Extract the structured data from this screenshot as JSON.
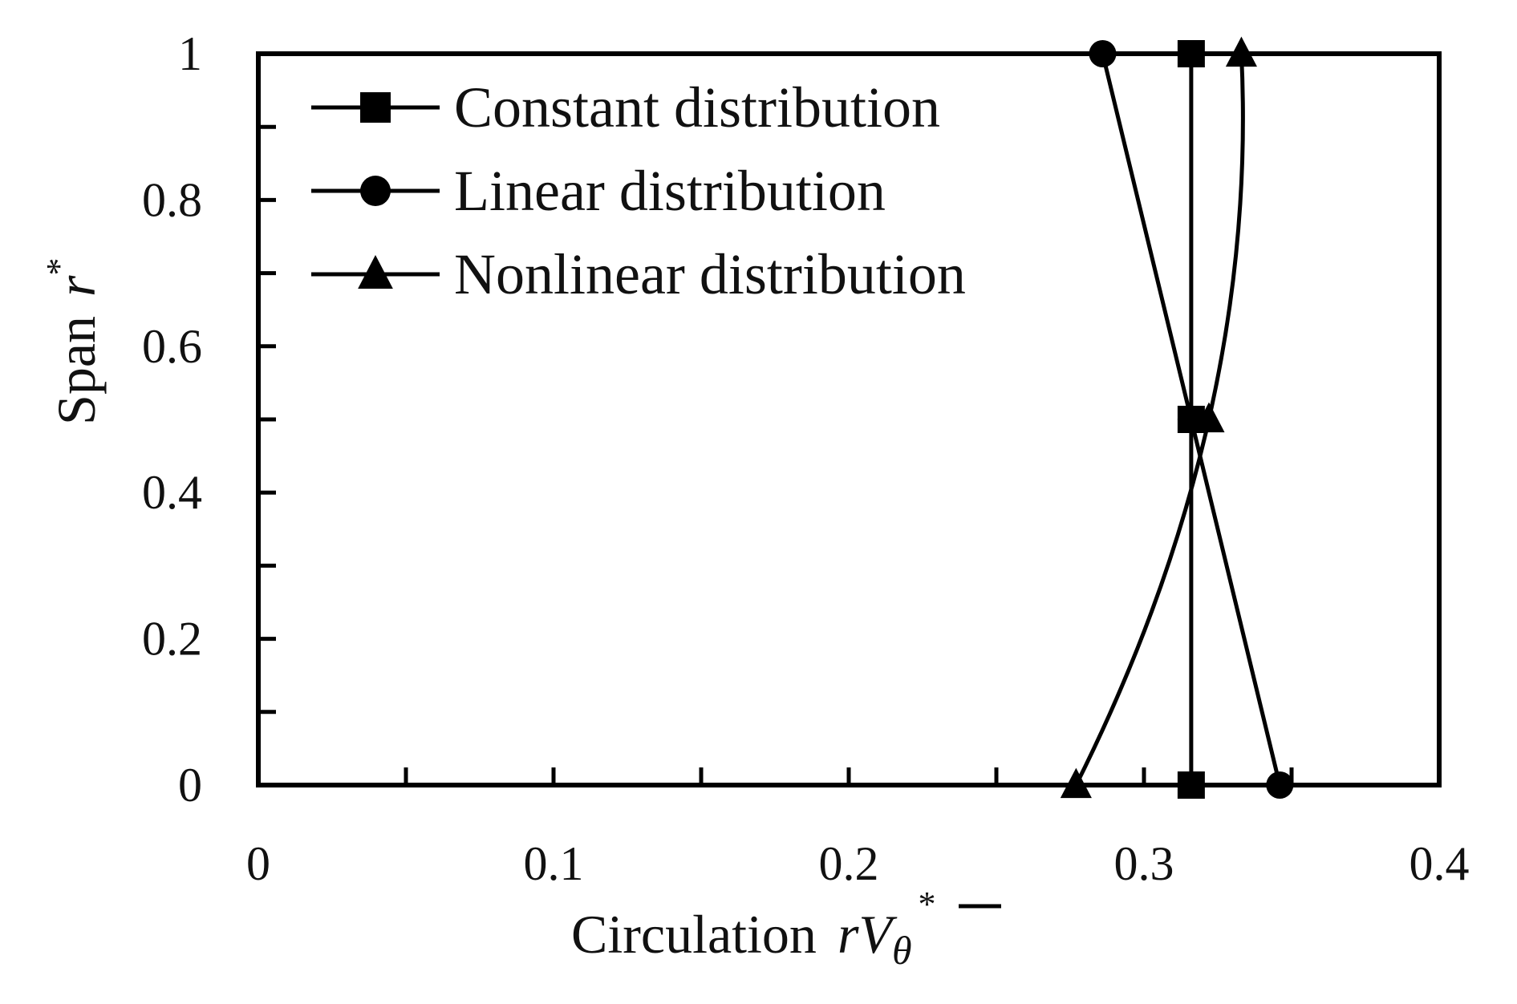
{
  "chart_data": {
    "type": "line",
    "xlabel": {
      "prefix": "Circulation",
      "var_r": "r",
      "var_V": "V",
      "var_sub": "θ",
      "sup": "*"
    },
    "ylabel": {
      "prefix": "Span",
      "var": "r",
      "sup": "*"
    },
    "xlim": [
      0,
      0.4
    ],
    "ylim": [
      0,
      1
    ],
    "x_ticks": [
      0,
      0.1,
      0.2,
      0.3,
      0.4
    ],
    "x_tick_labels": [
      "0",
      "0.1",
      "0.2",
      "0.3",
      "0.4"
    ],
    "x_minor_ticks": [
      0.05,
      0.15,
      0.25,
      0.35
    ],
    "y_ticks": [
      0,
      0.2,
      0.4,
      0.6,
      0.8,
      1
    ],
    "y_tick_labels": [
      "0",
      "0.2",
      "0.4",
      "0.6",
      "0.8",
      "1"
    ],
    "y_minor_ticks": [
      0.1,
      0.3,
      0.5,
      0.7,
      0.9
    ],
    "grid": false,
    "legend_position": "top-left",
    "series": [
      {
        "name": "Constant distribution",
        "marker": "square",
        "color": "#000000",
        "points": [
          {
            "x": 0.316,
            "y": 0
          },
          {
            "x": 0.316,
            "y": 0.5
          },
          {
            "x": 0.316,
            "y": 1
          }
        ]
      },
      {
        "name": "Linear distribution",
        "marker": "circle",
        "color": "#000000",
        "points": [
          {
            "x": 0.346,
            "y": 0
          },
          {
            "x": 0.316,
            "y": 0.5
          },
          {
            "x": 0.286,
            "y": 1
          }
        ]
      },
      {
        "name": "Nonlinear distribution",
        "marker": "triangle",
        "color": "#000000",
        "smooth": true,
        "points": [
          {
            "x": 0.277,
            "y": 0
          },
          {
            "x": 0.322,
            "y": 0.5
          },
          {
            "x": 0.333,
            "y": 1
          }
        ]
      }
    ]
  }
}
